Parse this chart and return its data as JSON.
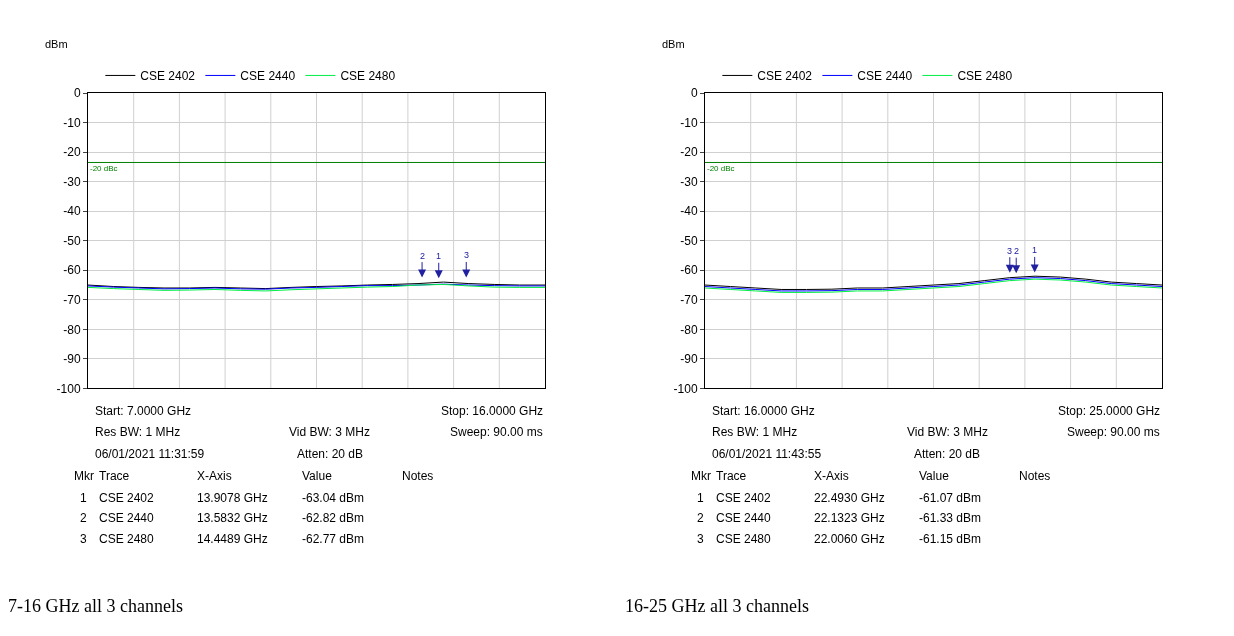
{
  "chart_data": [
    {
      "type": "line",
      "title": "7-16 GHz all 3 channels",
      "ylabel": "dBm",
      "legend": "top",
      "categories": [
        null,
        null,
        null,
        null,
        null,
        null,
        null,
        null,
        null,
        null,
        null,
        null,
        null,
        null,
        null,
        null,
        null,
        null,
        null
      ],
      "series": [
        {
          "name": "CSE 2402",
          "color": "#000000",
          "values": [
            -65,
            -65.5,
            -65.8,
            -66,
            -66,
            -65.8,
            -66,
            -66.2,
            -65.8,
            -65.5,
            -65.3,
            -65,
            -64.8,
            -64.5,
            -64,
            -64.5,
            -64.8,
            -65,
            -65
          ]
        },
        {
          "name": "CSE 2440",
          "color": "#0000ff",
          "values": [
            -65.3,
            -65.7,
            -66,
            -66.3,
            -66.2,
            -66,
            -66.3,
            -66.4,
            -66,
            -65.8,
            -65.5,
            -65.2,
            -65.2,
            -65,
            -64.7,
            -65,
            -65.2,
            -65.3,
            -65.3
          ]
        },
        {
          "name": "CSE 2480",
          "color": "#00ee44",
          "values": [
            -65.8,
            -66.2,
            -66.5,
            -66.8,
            -66.7,
            -66.5,
            -66.8,
            -67,
            -66.6,
            -66.3,
            -66,
            -65.7,
            -65.5,
            -65,
            -64.8,
            -65.3,
            -65.7,
            -65.8,
            -65.8
          ]
        }
      ],
      "ylim": [
        -100,
        0
      ],
      "yticks": [
        0,
        -10,
        -20,
        -30,
        -40,
        -50,
        -60,
        -70,
        -80,
        -90,
        -100
      ],
      "grid": true,
      "tick_labels": "y",
      "ref_lines": [
        {
          "axis": "y",
          "value": -23.5,
          "label": "-20 dBc",
          "color": "#008000"
        }
      ],
      "annotations": [
        "Start: 7.0000 GHz",
        "Stop: 16.0000 GHz",
        "Res BW: 1 MHz",
        "Vid BW: 3 MHz",
        "Sweep: 90.00 ms",
        "06/01/2021 11:31:59",
        "Atten: 20 dB",
        "Mkr",
        "Trace",
        "X-Axis",
        "Value",
        "Notes",
        "1",
        "CSE 2402",
        "13.9078 GHz",
        "-63.04 dBm",
        "2",
        "CSE 2440",
        "13.5832 GHz",
        "-62.82 dBm",
        "3",
        "CSE 2480",
        "14.4489 GHz",
        "-62.77 dBm",
        {
          "text": "1",
          "y": -63.04
        },
        {
          "text": "2",
          "y": -62.82
        },
        {
          "text": "3",
          "y": -62.77
        }
      ]
    },
    {
      "type": "line",
      "title": "16-25 GHz all 3 channels",
      "ylabel": "dBm",
      "legend": "top",
      "categories": [
        null,
        null,
        null,
        null,
        null,
        null,
        null,
        null,
        null,
        null,
        null,
        null,
        null,
        null,
        null,
        null,
        null,
        null,
        null
      ],
      "series": [
        {
          "name": "CSE 2402",
          "color": "#000000",
          "values": [
            -65,
            -65.5,
            -66,
            -66.5,
            -66.5,
            -66.4,
            -66,
            -66,
            -65.5,
            -65,
            -64.5,
            -63.5,
            -62.5,
            -62,
            -62.3,
            -63,
            -64,
            -64.5,
            -65
          ]
        },
        {
          "name": "CSE 2440",
          "color": "#0000ff",
          "values": [
            -65.5,
            -66,
            -66.5,
            -67,
            -67,
            -66.9,
            -66.5,
            -66.5,
            -66,
            -65.5,
            -65,
            -64,
            -63,
            -62.5,
            -62.8,
            -63.5,
            -64.5,
            -65,
            -65.5
          ]
        },
        {
          "name": "CSE 2480",
          "color": "#00ee44",
          "values": [
            -66,
            -66.5,
            -67,
            -67.5,
            -67.5,
            -67.4,
            -67,
            -67,
            -66.5,
            -66,
            -65.5,
            -64.5,
            -63.5,
            -63,
            -63.3,
            -64,
            -65,
            -65.5,
            -66
          ]
        }
      ],
      "ylim": [
        -100,
        0
      ],
      "yticks": [
        0,
        -10,
        -20,
        -30,
        -40,
        -50,
        -60,
        -70,
        -80,
        -90,
        -100
      ],
      "grid": true,
      "tick_labels": "y",
      "ref_lines": [
        {
          "axis": "y",
          "value": -23.5,
          "label": "-20 dBc",
          "color": "#008000"
        }
      ],
      "annotations": [
        "Start: 16.0000 GHz",
        "Stop: 25.0000 GHz",
        "Res BW: 1 MHz",
        "Vid BW: 3 MHz",
        "Sweep: 90.00 ms",
        "06/01/2021 11:43:55",
        "Atten: 20 dB",
        "Mkr",
        "Trace",
        "X-Axis",
        "Value",
        "Notes",
        "1",
        "CSE 2402",
        "22.4930 GHz",
        "-61.07 dBm",
        "2",
        "CSE 2440",
        "22.1323 GHz",
        "-61.33 dBm",
        "3",
        "CSE 2480",
        "22.0060 GHz",
        "-61.15 dBm",
        {
          "text": "1",
          "y": -61.07
        },
        {
          "text": "2",
          "y": -61.33
        },
        {
          "text": "3",
          "y": -61.15
        }
      ]
    }
  ]
}
